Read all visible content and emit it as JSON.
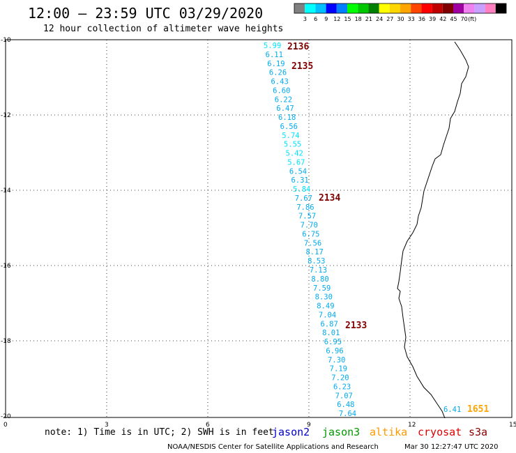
{
  "header": {
    "title": "12:00 – 23:59 UTC 03/29/2020",
    "subtitle": "12 hour collection of altimeter wave heights"
  },
  "color_scale": {
    "colors": [
      "#808080",
      "#00ffff",
      "#00bfff",
      "#0000ff",
      "#0080ff",
      "#00ff00",
      "#00c800",
      "#008000",
      "#ffff00",
      "#ffd700",
      "#ffa500",
      "#ff4500",
      "#ff0000",
      "#c00000",
      "#800000",
      "#a000a0",
      "#ee82ee",
      "#c8a0ff",
      "#ff80c0",
      "#000000"
    ],
    "labels": [
      "3",
      "6",
      "9",
      "12",
      "15",
      "18",
      "21",
      "24",
      "27",
      "30",
      "33",
      "36",
      "39",
      "42",
      "45",
      "70",
      "(ft)"
    ]
  },
  "axes": {
    "x_ticks": [
      "0",
      "3",
      "6",
      "9",
      "12",
      "15"
    ],
    "y_ticks": [
      "-10",
      "-12",
      "-14",
      "-16",
      "-18",
      "-20"
    ]
  },
  "passes": [
    {
      "label": "2136",
      "color": "#800000"
    },
    {
      "label": "2135",
      "color": "#800000"
    },
    {
      "label": "2134",
      "color": "#800000"
    },
    {
      "label": "2133",
      "color": "#800000"
    },
    {
      "label": "1651",
      "color": "#ffa500"
    }
  ],
  "swh_values": [
    "5.99",
    "6.11",
    "6.19",
    "6.26",
    "6.43",
    "6.60",
    "6.22",
    "6.47",
    "6.18",
    "6.56",
    "5.74",
    "5.55",
    "5.42",
    "5.67",
    "6.54",
    "6.31",
    "5.84",
    "7.67",
    "7.86",
    "7.57",
    "7.70",
    "6.75",
    "7.56",
    "8.17",
    "8.53",
    "7.13",
    "8.80",
    "7.59",
    "8.30",
    "8.49",
    "7.04",
    "6.87",
    "8.01",
    "6.95",
    "6.96",
    "7.30",
    "7.19",
    "7.20",
    "6.23",
    "7.07",
    "6.48",
    "7.64"
  ],
  "extra_value": "6.41",
  "note": "note: 1) Time is in UTC; 2) SWH is in feet",
  "satellites": [
    {
      "name": "jason2",
      "color": "#0000cc"
    },
    {
      "name": "jason3",
      "color": "#009900"
    },
    {
      "name": "altika",
      "color": "#ff9900"
    },
    {
      "name": "cryosat",
      "color": "#dd0000"
    },
    {
      "name": "s3a",
      "color": "#880000"
    }
  ],
  "credit_left": "NOAA/NESDIS Center for Satellite Applications and Research",
  "credit_right": "Mar 30 12:27:47 UTC 2020"
}
